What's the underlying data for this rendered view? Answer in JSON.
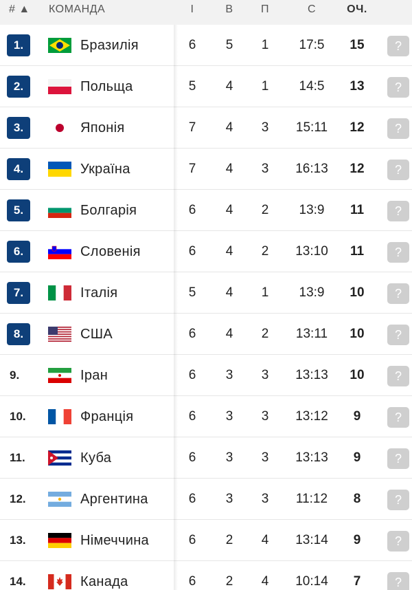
{
  "header": {
    "rank": "# ▲",
    "team": "КОМАНДА",
    "played": "І",
    "won": "В",
    "lost": "П",
    "sets": "С",
    "points": "ОЧ."
  },
  "colors": {
    "qualified_badge": "#0e3f79",
    "form_placeholder": "#cfcfcf",
    "header_bg": "#f2f2f2"
  },
  "form_icon": "?",
  "rows": [
    {
      "rank": "1.",
      "qualified": true,
      "flag": "brazil-flag-icon",
      "team": "Бразилія",
      "played": "6",
      "won": "5",
      "lost": "1",
      "sets": "17:5",
      "points": "15"
    },
    {
      "rank": "2.",
      "qualified": true,
      "flag": "poland-flag-icon",
      "team": "Польща",
      "played": "5",
      "won": "4",
      "lost": "1",
      "sets": "14:5",
      "points": "13"
    },
    {
      "rank": "3.",
      "qualified": true,
      "flag": "japan-flag-icon",
      "team": "Японія",
      "played": "7",
      "won": "4",
      "lost": "3",
      "sets": "15:11",
      "points": "12"
    },
    {
      "rank": "4.",
      "qualified": true,
      "flag": "ukraine-flag-icon",
      "team": "Україна",
      "played": "7",
      "won": "4",
      "lost": "3",
      "sets": "16:13",
      "points": "12"
    },
    {
      "rank": "5.",
      "qualified": true,
      "flag": "bulgaria-flag-icon",
      "team": "Болгарія",
      "played": "6",
      "won": "4",
      "lost": "2",
      "sets": "13:9",
      "points": "11"
    },
    {
      "rank": "6.",
      "qualified": true,
      "flag": "slovenia-flag-icon",
      "team": "Словенія",
      "played": "6",
      "won": "4",
      "lost": "2",
      "sets": "13:10",
      "points": "11"
    },
    {
      "rank": "7.",
      "qualified": true,
      "flag": "italy-flag-icon",
      "team": "Італія",
      "played": "5",
      "won": "4",
      "lost": "1",
      "sets": "13:9",
      "points": "10"
    },
    {
      "rank": "8.",
      "qualified": true,
      "flag": "usa-flag-icon",
      "team": "США",
      "played": "6",
      "won": "4",
      "lost": "2",
      "sets": "13:11",
      "points": "10"
    },
    {
      "rank": "9.",
      "qualified": false,
      "flag": "iran-flag-icon",
      "team": "Іран",
      "played": "6",
      "won": "3",
      "lost": "3",
      "sets": "13:13",
      "points": "10"
    },
    {
      "rank": "10.",
      "qualified": false,
      "flag": "france-flag-icon",
      "team": "Франція",
      "played": "6",
      "won": "3",
      "lost": "3",
      "sets": "13:12",
      "points": "9"
    },
    {
      "rank": "11.",
      "qualified": false,
      "flag": "cuba-flag-icon",
      "team": "Куба",
      "played": "6",
      "won": "3",
      "lost": "3",
      "sets": "13:13",
      "points": "9"
    },
    {
      "rank": "12.",
      "qualified": false,
      "flag": "argentina-flag-icon",
      "team": "Аргентина",
      "played": "6",
      "won": "3",
      "lost": "3",
      "sets": "11:12",
      "points": "8"
    },
    {
      "rank": "13.",
      "qualified": false,
      "flag": "germany-flag-icon",
      "team": "Німеччина",
      "played": "6",
      "won": "2",
      "lost": "4",
      "sets": "13:14",
      "points": "9"
    },
    {
      "rank": "14.",
      "qualified": false,
      "flag": "canada-flag-icon",
      "team": "Канада",
      "played": "6",
      "won": "2",
      "lost": "4",
      "sets": "10:14",
      "points": "7"
    }
  ]
}
